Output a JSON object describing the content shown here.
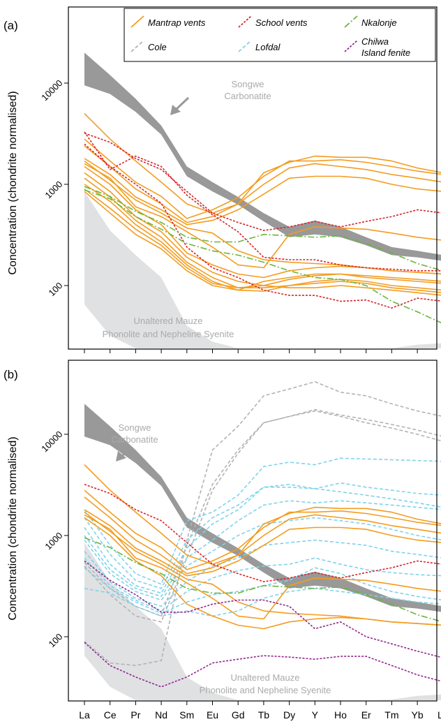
{
  "figure": {
    "panel_a_label": "(a)",
    "panel_b_label": "(b)",
    "ylabel": "Concentration (chondrite normalised)",
    "songwe_label_line1": "Songwe",
    "songwe_label_line2": "Carbonatite",
    "mauze_label_line1": "Unaltered Mauze",
    "mauze_label_line2": "Phonolite and Nepheline Syenite"
  },
  "legend": [
    {
      "key": "mantrap",
      "label": "Mantrap vents",
      "color": "#f39c1f",
      "dash": ""
    },
    {
      "key": "school",
      "label": "School vents",
      "color": "#d8232a",
      "dash": "3,2"
    },
    {
      "key": "nkalonje",
      "label": "Nkalonje",
      "color": "#6ab53e",
      "dash": "9,3,2,3"
    },
    {
      "key": "cole",
      "label": "Cole",
      "color": "#b3b3b3",
      "dash": "5,3"
    },
    {
      "key": "lofdal",
      "label": "Lofdal",
      "color": "#7fd3ea",
      "dash": "5,3"
    },
    {
      "key": "chilwa",
      "label": "Chilwa Island fenite",
      "color": "#93278f",
      "dash": "3,2"
    }
  ],
  "chart_data": [
    {
      "type": "line",
      "panel": "a",
      "categories": [
        "La",
        "Ce",
        "Pr",
        "Nd",
        "Sm",
        "Eu",
        "Gd",
        "Tb",
        "Dy",
        "Y",
        "Ho",
        "Er",
        "Tm",
        "Yb",
        "Lu"
      ],
      "yscale": "log",
      "ylim": [
        20,
        60000
      ],
      "yticks": [
        100,
        1000,
        10000
      ],
      "ylabel": "Concentration (chondrite normalised)",
      "bands": [
        {
          "name": "Songwe Carbonatite",
          "color": "#999999",
          "upper": [
            20000,
            12000,
            7000,
            3800,
            1500,
            1050,
            750,
            520,
            380,
            440,
            380,
            300,
            240,
            220,
            200
          ],
          "lower": [
            9500,
            7800,
            5200,
            3100,
            1200,
            850,
            630,
            430,
            300,
            320,
            300,
            250,
            200,
            190,
            175
          ]
        },
        {
          "name": "Unaltered Mauze Phonolite and Nepheline Syenite",
          "color": "#e0e1e3",
          "upper": [
            850,
            350,
            200,
            120,
            40,
            28,
            22,
            20,
            20,
            20,
            20,
            20,
            20,
            20,
            20
          ],
          "lower": [
            65,
            32,
            20,
            20,
            20,
            20,
            20,
            20,
            20,
            20,
            20,
            20,
            20,
            20,
            20
          ],
          "upper_end": [
            20,
            20,
            20,
            20,
            20,
            20,
            20,
            20,
            20,
            21,
            22,
            23,
            24,
            26,
            27
          ]
        }
      ],
      "series": [
        {
          "group": "mantrap",
          "values": [
            5000,
            2800,
            1700,
            1050,
            640,
            520,
            640,
            1300,
            1650,
            1900,
            1850,
            1850,
            1700,
            1450,
            1300
          ]
        },
        {
          "group": "mantrap",
          "values": [
            2800,
            1700,
            1050,
            760,
            460,
            560,
            740,
            1200,
            1700,
            1700,
            1750,
            1650,
            1500,
            1350,
            1250
          ]
        },
        {
          "group": "mantrap",
          "values": [
            2400,
            1500,
            900,
            640,
            420,
            480,
            640,
            1000,
            1450,
            1600,
            1500,
            1400,
            1250,
            1150,
            1050
          ]
        },
        {
          "group": "mantrap",
          "values": [
            1800,
            1250,
            750,
            560,
            400,
            440,
            560,
            800,
            1150,
            1200,
            1200,
            1150,
            1000,
            900,
            850
          ]
        },
        {
          "group": "mantrap",
          "values": [
            1600,
            1150,
            600,
            480,
            340,
            240,
            160,
            150,
            320,
            380,
            370,
            360,
            330,
            300,
            280
          ]
        },
        {
          "group": "mantrap",
          "values": [
            1500,
            1000,
            560,
            400,
            210,
            160,
            130,
            120,
            140,
            150,
            155,
            150,
            140,
            135,
            130
          ]
        },
        {
          "group": "mantrap",
          "values": [
            1300,
            850,
            480,
            340,
            190,
            135,
            110,
            100,
            95,
            95,
            100,
            95,
            90,
            85,
            80
          ]
        },
        {
          "group": "mantrap",
          "values": [
            1150,
            750,
            440,
            300,
            170,
            120,
            95,
            95,
            100,
            105,
            110,
            105,
            95,
            90,
            85
          ]
        },
        {
          "group": "mantrap",
          "values": [
            1000,
            680,
            400,
            270,
            160,
            110,
            90,
            88,
            100,
            110,
            115,
            110,
            100,
            95,
            90
          ]
        },
        {
          "group": "mantrap",
          "values": [
            900,
            580,
            360,
            250,
            150,
            105,
            95,
            100,
            115,
            125,
            130,
            120,
            115,
            110,
            105
          ]
        },
        {
          "group": "mantrap",
          "values": [
            850,
            520,
            320,
            230,
            140,
            100,
            90,
            110,
            120,
            130,
            130,
            125,
            120,
            115,
            110
          ]
        },
        {
          "group": "mantrap",
          "values": [
            1700,
            1100,
            700,
            520,
            370,
            330,
            220,
            180,
            170,
            165,
            160,
            150,
            140,
            135,
            130
          ]
        },
        {
          "group": "school",
          "values": [
            3200,
            2600,
            1800,
            1400,
            850,
            520,
            420,
            350,
            380,
            430,
            380,
            430,
            480,
            560,
            520
          ]
        },
        {
          "group": "school",
          "values": [
            3300,
            1400,
            1900,
            1500,
            780,
            500,
            340,
            190,
            180,
            180,
            160,
            150,
            145,
            140,
            140
          ]
        },
        {
          "group": "school",
          "values": [
            2500,
            1500,
            1000,
            650,
            240,
            150,
            120,
            90,
            80,
            80,
            70,
            72,
            60,
            75,
            70
          ]
        },
        {
          "group": "nkalonje",
          "values": [
            950,
            760,
            540,
            420,
            300,
            270,
            270,
            320,
            310,
            300,
            310,
            260,
            210,
            165,
            140
          ]
        },
        {
          "group": "nkalonje",
          "values": [
            880,
            720,
            480,
            360,
            260,
            220,
            200,
            170,
            140,
            120,
            115,
            100,
            70,
            55,
            42
          ]
        }
      ]
    },
    {
      "type": "line",
      "panel": "b",
      "categories": [
        "La",
        "Ce",
        "Pr",
        "Nd",
        "Sm",
        "Eu",
        "Gd",
        "Tb",
        "Dy",
        "Y",
        "Ho",
        "Er",
        "Tm",
        "Yb",
        "Lu"
      ],
      "yscale": "log",
      "ylim": [
        20,
        60000
      ],
      "yticks": [
        100,
        1000,
        10000
      ],
      "ylabel": "Concentration (chondrite normalised)",
      "bands": [
        {
          "name": "Songwe Carbonatite",
          "color": "#999999",
          "upper": [
            20000,
            12000,
            7000,
            3800,
            1500,
            1050,
            750,
            520,
            380,
            440,
            380,
            300,
            240,
            220,
            200
          ],
          "lower": [
            9500,
            7800,
            5200,
            3100,
            1200,
            850,
            630,
            430,
            300,
            320,
            300,
            250,
            200,
            190,
            175
          ]
        },
        {
          "name": "Unaltered Mauze Phonolite and Nepheline Syenite",
          "color": "#e0e1e3",
          "upper": [
            850,
            350,
            200,
            120,
            40,
            28,
            22,
            20,
            20,
            20,
            20,
            20,
            20,
            20,
            20
          ],
          "lower": [
            65,
            32,
            20,
            20,
            20,
            20,
            20,
            20,
            20,
            20,
            20,
            20,
            20,
            20,
            20
          ],
          "upper_end": [
            20,
            20,
            20,
            20,
            20,
            20,
            20,
            20,
            20,
            21,
            22,
            23,
            24,
            26,
            27
          ]
        }
      ],
      "series": [
        {
          "group": "cole",
          "values": [
            90,
            55,
            52,
            58,
            900,
            7000,
            12000,
            24000,
            28000,
            33000,
            26000,
            24000,
            20000,
            17000,
            15000
          ]
        },
        {
          "group": "cole",
          "values": [
            540,
            300,
            200,
            160,
            800,
            3200,
            7000,
            13000,
            15000,
            17500,
            15500,
            14000,
            12500,
            11000,
            9500
          ]
        },
        {
          "group": "cole",
          "values": [
            500,
            260,
            160,
            140,
            600,
            2800,
            6500,
            13000,
            15000,
            17000,
            15000,
            13000,
            11500,
            10000,
            8500
          ]
        },
        {
          "group": "lofdal",
          "values": [
            1800,
            800,
            420,
            330,
            1400,
            1700,
            2500,
            4800,
            5300,
            5000,
            5800,
            5700,
            5600,
            5500,
            5400
          ]
        },
        {
          "group": "lofdal",
          "values": [
            1500,
            650,
            360,
            300,
            900,
            1500,
            2000,
            3000,
            3200,
            2900,
            3300,
            3000,
            2800,
            2600,
            2500
          ]
        },
        {
          "group": "lofdal",
          "values": [
            1200,
            520,
            320,
            270,
            750,
            1300,
            1800,
            3000,
            3000,
            2900,
            2700,
            2500,
            2300,
            2100,
            1900
          ]
        },
        {
          "group": "lofdal",
          "values": [
            1000,
            460,
            300,
            250,
            600,
            900,
            1400,
            2000,
            2200,
            2100,
            2200,
            2100,
            2000,
            1900,
            1800
          ]
        },
        {
          "group": "lofdal",
          "values": [
            900,
            420,
            280,
            230,
            500,
            700,
            1000,
            1300,
            1400,
            1500,
            1400,
            1300,
            1150,
            1000,
            900
          ]
        },
        {
          "group": "lofdal",
          "values": [
            700,
            350,
            240,
            200,
            350,
            500,
            600,
            800,
            850,
            900,
            850,
            800,
            700,
            650,
            600
          ]
        },
        {
          "group": "lofdal",
          "values": [
            600,
            320,
            230,
            180,
            280,
            380,
            450,
            500,
            520,
            600,
            520,
            460,
            430,
            410,
            400
          ]
        },
        {
          "group": "lofdal",
          "values": [
            480,
            300,
            220,
            170,
            220,
            260,
            280,
            320,
            360,
            480,
            420,
            330,
            280,
            250,
            230
          ]
        },
        {
          "group": "lofdal",
          "values": [
            300,
            270,
            200,
            160,
            180,
            160,
            180,
            240,
            280,
            300,
            280,
            260,
            240,
            220,
            210
          ]
        },
        {
          "group": "mantrap",
          "values": [
            5000,
            2800,
            1700,
            1050,
            640,
            520,
            640,
            1300,
            1650,
            1900,
            1850,
            1850,
            1700,
            1450,
            1300
          ]
        },
        {
          "group": "mantrap",
          "values": [
            2800,
            1700,
            1050,
            760,
            460,
            560,
            740,
            1200,
            1700,
            1700,
            1750,
            1650,
            1500,
            1350,
            1250
          ]
        },
        {
          "group": "mantrap",
          "values": [
            2400,
            1500,
            900,
            640,
            420,
            480,
            640,
            1000,
            1450,
            1600,
            1500,
            1400,
            1250,
            1150,
            1050
          ]
        },
        {
          "group": "mantrap",
          "values": [
            1800,
            1250,
            750,
            560,
            400,
            440,
            560,
            800,
            1150,
            1200,
            1200,
            1150,
            1000,
            900,
            850
          ]
        },
        {
          "group": "mantrap",
          "values": [
            1600,
            1150,
            600,
            480,
            340,
            240,
            160,
            150,
            320,
            380,
            370,
            360,
            330,
            300,
            280
          ]
        },
        {
          "group": "mantrap",
          "values": [
            1500,
            1000,
            560,
            400,
            210,
            160,
            130,
            120,
            140,
            150,
            155,
            150,
            140,
            135,
            130
          ]
        },
        {
          "group": "mantrap",
          "values": [
            1700,
            1100,
            700,
            520,
            370,
            330,
            220,
            180,
            170,
            165,
            160,
            150,
            140,
            135,
            130
          ]
        },
        {
          "group": "school",
          "values": [
            3200,
            2600,
            1800,
            1400,
            850,
            520,
            420,
            350,
            380,
            430,
            380,
            430,
            480,
            560,
            520
          ]
        },
        {
          "group": "nkalonje",
          "values": [
            950,
            760,
            540,
            420,
            300,
            270,
            270,
            320,
            310,
            300,
            310,
            260,
            210,
            165,
            140
          ]
        },
        {
          "group": "chilwa",
          "values": [
            560,
            360,
            260,
            175,
            175,
            210,
            230,
            230,
            200,
            120,
            140,
            100,
            85,
            72,
            62
          ]
        },
        {
          "group": "chilwa",
          "values": [
            88,
            52,
            40,
            32,
            40,
            55,
            60,
            65,
            63,
            60,
            64,
            64,
            52,
            42,
            36
          ]
        }
      ]
    }
  ]
}
